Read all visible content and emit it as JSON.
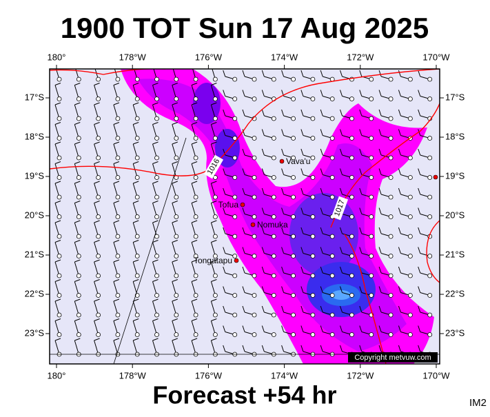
{
  "header": {
    "title": "1900 TOT Sun 17 Aug 2025"
  },
  "map": {
    "longitude_labels": [
      "180°",
      "178°W",
      "176°W",
      "174°W",
      "172°W",
      "170°W"
    ],
    "latitude_labels": [
      "17°S",
      "18°S",
      "19°S",
      "20°S",
      "21°S",
      "22°S",
      "23°S"
    ],
    "places": [
      {
        "label": "Vava'u"
      },
      {
        "label": "Tofua"
      },
      {
        "label": "Nomuka"
      },
      {
        "label": "Tongatapu"
      }
    ],
    "isobars": [
      "1016",
      "1017"
    ],
    "copyright": "Copyright metvuw.com"
  },
  "footer": {
    "forecast": "Forecast +54 hr",
    "code": "IM2"
  }
}
